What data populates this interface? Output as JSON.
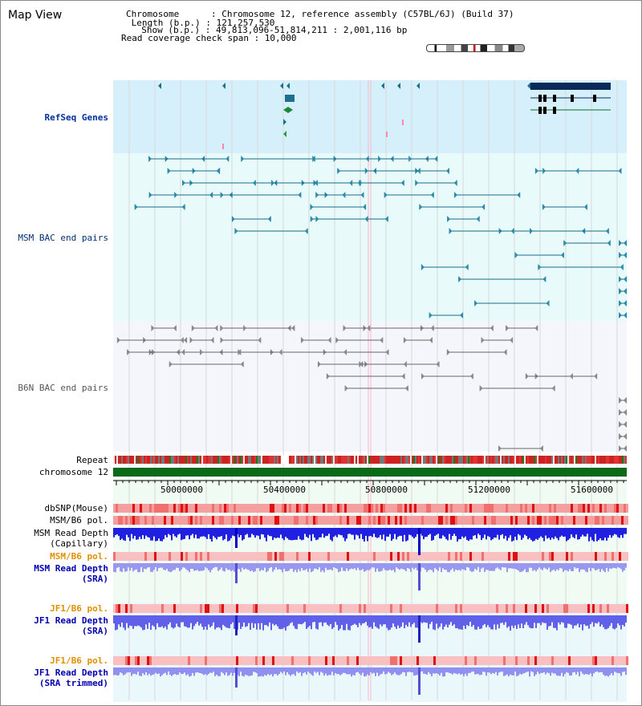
{
  "view_title": "Map View",
  "info": {
    "chromosome_line": "Chromosome      : Chromosome 12, reference assembly (C57BL/6J) (Build 37)",
    "length_line": " Length (b.p.) : 121,257,530",
    "show_line": "  Show (b.p.) : 49,813,096-51,814,211 : 2,001,116 bp",
    "coverage_line": "Read coverage check span : 10,000"
  },
  "tracks": {
    "refseq": "RefSeq Genes",
    "msm_bac": "MSM BAC end pairs",
    "b6n_bac": "B6N BAC end pairs",
    "repeat": "Repeat",
    "chromosome": "chromosome 12",
    "dbsnp": "dbSNP(Mouse)",
    "msm_b6_pol_1": "MSM/B6 pol.",
    "msm_depth_cap": "MSM Read Depth\n(Capillary)",
    "msm_b6_pol_2": "MSM/B6 pol.",
    "msm_depth_sra": "MSM Read Depth\n(SRA)",
    "jf1_b6_pol_1": "JF1/B6 pol.",
    "jf1_depth_sra": "JF1 Read Depth\n(SRA)",
    "jf1_b6_pol_2": "JF1/B6 pol.",
    "jf1_depth_trim": "JF1 Read Depth\n(SRA trimmed)"
  },
  "ruler": {
    "ticks": [
      "50000000",
      "50400000",
      "50800000",
      "51200000",
      "51600000"
    ]
  },
  "colors": {
    "refseq_bg": "#d6f0fb",
    "msm_bac_bg": "#e8fafa",
    "b6n_bac_bg": "#f4f6fb",
    "msm_label": "#00306e",
    "refseq_label": "#00309c",
    "orange_label": "#e09000",
    "blue_label": "#0000b0",
    "depth_dark": "#2020e0",
    "depth_light": "#8888f0"
  }
}
